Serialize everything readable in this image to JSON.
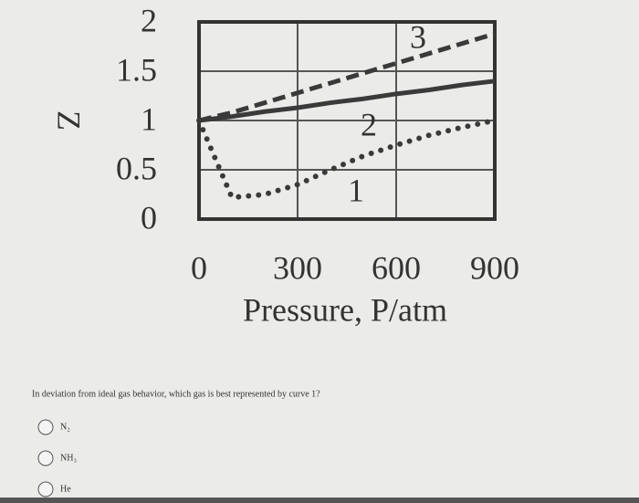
{
  "chart_data": {
    "type": "line",
    "ylabel": "Z",
    "xlabel": "Pressure, P/atm",
    "x": [
      0,
      100,
      200,
      300,
      400,
      500,
      600,
      700,
      800,
      900
    ],
    "series": [
      {
        "name": "1",
        "color": "#3a3a3a",
        "style": "dotted",
        "values": [
          1.0,
          0.22,
          0.25,
          0.35,
          0.5,
          0.64,
          0.75,
          0.85,
          0.93,
          1.0
        ]
      },
      {
        "name": "2",
        "color": "#3a3a3a",
        "style": "solid",
        "values": [
          1.0,
          1.04,
          1.09,
          1.13,
          1.18,
          1.22,
          1.27,
          1.31,
          1.36,
          1.4
        ]
      },
      {
        "name": "3",
        "color": "#3a3a3a",
        "style": "dashed",
        "values": [
          1.0,
          1.08,
          1.18,
          1.28,
          1.38,
          1.48,
          1.58,
          1.68,
          1.78,
          1.88
        ]
      }
    ],
    "xlim": [
      0,
      900
    ],
    "xticks": [
      0,
      300,
      600,
      900
    ],
    "ylim": [
      0,
      2
    ],
    "yticks": [
      0,
      {
        "value": 0.5,
        "label": "0.5"
      },
      1,
      {
        "value": 1.5,
        "label": "1.5"
      },
      2
    ],
    "grid": true
  },
  "question": "In deviation from ideal gas behavior, which gas is best represented by curve 1?",
  "options": [
    "N₂",
    "NH₃",
    "He"
  ]
}
